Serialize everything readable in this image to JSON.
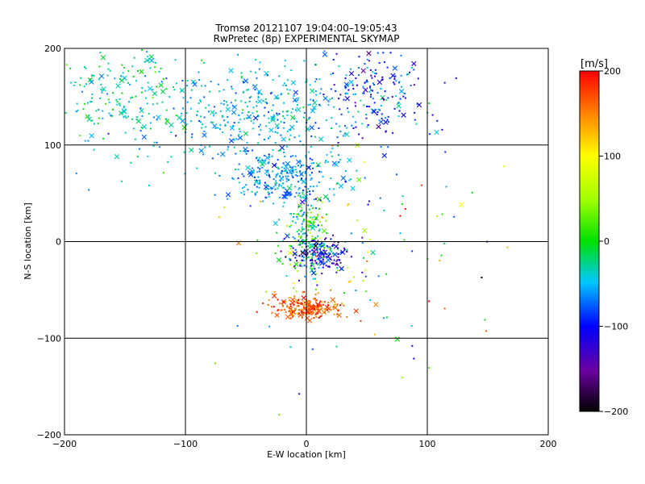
{
  "chart_data": {
    "type": "scatter",
    "title": "Tromsø 20121107 19:04:00–19:05:43",
    "subtitle": "RwPretec (8p) EXPERIMENTAL SKYMAP",
    "xlabel": "E-W location [km]",
    "ylabel": "N-S location [km]",
    "xlim": [
      -200,
      200
    ],
    "ylim": [
      -200,
      200
    ],
    "x_ticks": [
      -200,
      -100,
      0,
      100,
      200
    ],
    "y_ticks": [
      -200,
      -100,
      0,
      100,
      200
    ],
    "grid": true,
    "colorbar": {
      "label": "[m/s]",
      "range": [
        -200,
        200
      ],
      "ticks": [
        200,
        100,
        0,
        -100,
        -200
      ]
    },
    "clusters": [
      {
        "x": -150,
        "y": 150,
        "sx": 35,
        "sy": 30,
        "n": 220,
        "v": -30,
        "sv": 25
      },
      {
        "x": -40,
        "y": 135,
        "sx": 45,
        "sy": 25,
        "n": 380,
        "v": -50,
        "sv": 20
      },
      {
        "x": 60,
        "y": 155,
        "sx": 25,
        "sy": 25,
        "n": 170,
        "v": -90,
        "sv": 30
      },
      {
        "x": -20,
        "y": 65,
        "sx": 22,
        "sy": 15,
        "n": 260,
        "v": -60,
        "sv": 20
      },
      {
        "x": 0,
        "y": 5,
        "sx": 10,
        "sy": 20,
        "n": 200,
        "v": -10,
        "sv": 40
      },
      {
        "x": 10,
        "y": -15,
        "sx": 12,
        "sy": 10,
        "n": 150,
        "v": -110,
        "sv": 40
      },
      {
        "x": 0,
        "y": -68,
        "sx": 14,
        "sy": 6,
        "n": 210,
        "v": 170,
        "sv": 25
      },
      {
        "x": 50,
        "y": -15,
        "sx": 55,
        "sy": 65,
        "n": 120,
        "v": 0,
        "sv": 110
      }
    ]
  }
}
